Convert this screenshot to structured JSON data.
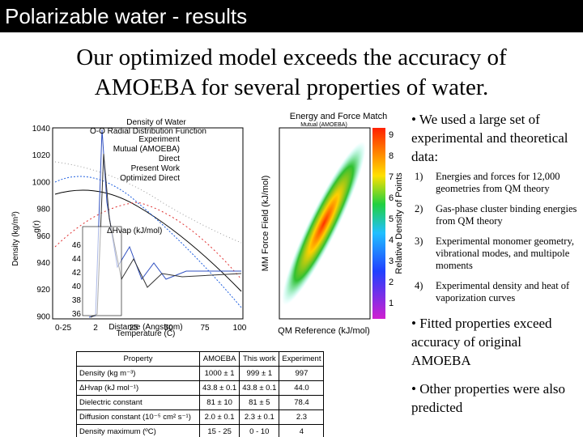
{
  "header": {
    "title": "Polarizable water - results"
  },
  "subtitle": [
    "Our optimized model exceeds the accuracy of",
    "AMOEBA for several properties of water."
  ],
  "figure": {
    "left_titles": [
      "Density of Water",
      "O-O Radial Distribution Function"
    ],
    "legend": [
      "Experiment",
      "Mutual (AMOEBA)",
      "Direct",
      "Present Work",
      "Optimized Direct"
    ],
    "y_label": "Density (kg/m³)",
    "y2_label": "g(r)",
    "x_label": "Temperature (C)",
    "x2_label": "Distance (Angstrom)",
    "inset_label": "ΔHvap (kJ/mol)",
    "y_ticks": [
      "1040",
      "1020",
      "1000",
      "980",
      "960",
      "940",
      "920",
      "900"
    ],
    "inset_ticks": [
      "46",
      "44",
      "42",
      "40",
      "38",
      "36"
    ],
    "x_ticks": [
      "0-25",
      "2",
      "25",
      "50",
      "75",
      "100"
    ],
    "right_title": "Energy and Force Match",
    "right_subtitle": "Mutual (AMOEBA)",
    "right_y_label": "MM Force Field (kJ/mol)",
    "right_x_label": "QM Reference (kJ/mol)",
    "colorbar_label": "Relative Density of Points",
    "colorbar_ticks": [
      "9",
      "8",
      "7",
      "6",
      "5",
      "4",
      "3",
      "2",
      "1"
    ]
  },
  "bullets": [
    {
      "text": "We used a large set of experimental and theoretical data:",
      "items": [
        {
          "num": "1)",
          "text": "Energies and forces for 12,000 geometries from QM theory"
        },
        {
          "num": "2)",
          "text": "Gas-phase cluster binding energies from QM theory"
        },
        {
          "num": "3)",
          "text": "Experimental monomer geometry, vibrational modes, and multipole moments"
        },
        {
          "num": "4)",
          "text": "Experimental density and heat of vaporization curves"
        }
      ]
    },
    {
      "text": "Fitted properties exceed accuracy of original AMOEBA",
      "items": []
    },
    {
      "text": "Other properties were also predicted",
      "items": []
    }
  ],
  "table": {
    "header": [
      "Property",
      "AMOEBA",
      "This work",
      "Experiment"
    ],
    "rows": [
      [
        "Density (kg m⁻³)",
        "1000 ± 1",
        "999 ± 1",
        "997"
      ],
      [
        "ΔHvap (kJ mol⁻¹)",
        "43.8 ± 0.1",
        "43.8 ± 0.1",
        "44.0"
      ],
      [
        "Dielectric constant",
        "81 ± 10",
        "81 ± 5",
        "78.4"
      ],
      [
        "Diffusion constant (10⁻⁵ cm² s⁻¹)",
        "2.0 ± 0.1",
        "2.3 ± 0.1",
        "2.3"
      ],
      [
        "Density maximum (ºC)",
        "15 - 25",
        "0 - 10",
        "4"
      ]
    ]
  }
}
